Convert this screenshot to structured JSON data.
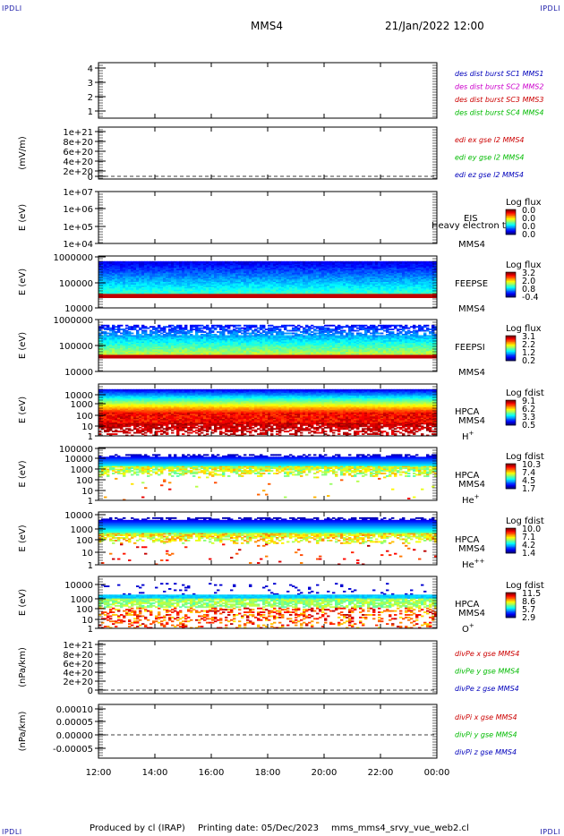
{
  "corners": {
    "tl": "IPDLI",
    "tr": "IPDLI",
    "bl": "IPDLI",
    "br": "IPDLI"
  },
  "header": {
    "spacecraft": "MMS4",
    "datetime": "21/Jan/2022 12:00"
  },
  "footer": {
    "produced": "Produced by cl (IRAP)",
    "printing": "Printing date: 05/Dec/2023",
    "script": "mms_mms4_srvy_vue_web2.cl"
  },
  "colors": {
    "red": "#cc0000",
    "green": "#00bb00",
    "blue": "#0000bb",
    "magenta": "#cc00cc"
  },
  "chart_data": [
    {
      "type": "line",
      "name": "burst",
      "yticks": [
        "4",
        "3",
        "2",
        "1"
      ],
      "legend": [
        {
          "label": "des dist burst SC1 MMS1",
          "color": "#0000bb"
        },
        {
          "label": "des dist burst SC2 MMS2",
          "color": "#cc00cc"
        },
        {
          "label": "des dist burst SC3 MMS3",
          "color": "#cc0000"
        },
        {
          "label": "des dist burst SC4 MMS4",
          "color": "#00bb00"
        }
      ]
    },
    {
      "type": "line",
      "name": "edi",
      "ylabel": "(mV/m)",
      "yticks": [
        "1e+21",
        "8e+20",
        "6e+20",
        "4e+20",
        "2e+20",
        "0"
      ],
      "legend": [
        {
          "label": "edi ex gse l2 MMS4",
          "color": "#cc0000"
        },
        {
          "label": "edi ey gse l2 MMS4",
          "color": "#00bb00"
        },
        {
          "label": "edi ez gse l2 MMS4",
          "color": "#0000bb"
        }
      ]
    },
    {
      "type": "heatmap",
      "name": "eis",
      "ylabel": "E (eV)",
      "yticks": [
        "1e+07",
        "1e+06",
        "1e+05",
        "1e+04"
      ],
      "labels": [
        "EIS",
        "MMS4"
      ],
      "overlay": "Heavy electron to",
      "cbar_title": "Log flux",
      "cbar_ticks": [
        "0.0",
        "0.0",
        "0.0",
        "0.0"
      ]
    },
    {
      "type": "heatmap",
      "name": "feepse",
      "ylabel": "E (eV)",
      "yticks": [
        "1000000",
        "100000",
        "10000"
      ],
      "labels": [
        "FEEPSE",
        "MMS4"
      ],
      "cbar_title": "Log flux",
      "cbar_ticks": [
        "3.2",
        "2.0",
        "0.8",
        "-0.4"
      ]
    },
    {
      "type": "heatmap",
      "name": "feepsi",
      "ylabel": "E (eV)",
      "yticks": [
        "1000000",
        "100000",
        "10000"
      ],
      "labels": [
        "FEEPSI",
        "MMS4"
      ],
      "cbar_title": "Log flux",
      "cbar_ticks": [
        "3.1",
        "2.2",
        "1.2",
        "0.2"
      ]
    },
    {
      "type": "heatmap",
      "name": "hpca-h",
      "ylabel": "E (eV)",
      "yticks": [
        "10000",
        "1000",
        "100",
        "10",
        "1"
      ],
      "labels": [
        "HPCA",
        "MMS4"
      ],
      "ion": "H",
      "ionsup": "+",
      "cbar_title": "Log fdist",
      "cbar_ticks": [
        "9.1",
        "6.2",
        "3.3",
        "0.5"
      ]
    },
    {
      "type": "heatmap",
      "name": "hpca-he",
      "ylabel": "E (eV)",
      "yticks": [
        "100000",
        "10000",
        "1000",
        "100",
        "10",
        "1"
      ],
      "labels": [
        "HPCA",
        "MMS4"
      ],
      "ion": "He",
      "ionsup": "+",
      "cbar_title": "Log fdist",
      "cbar_ticks": [
        "10.3",
        "7.4",
        "4.5",
        "1.7"
      ]
    },
    {
      "type": "heatmap",
      "name": "hpca-hepp",
      "ylabel": "E (eV)",
      "yticks": [
        "10000",
        "1000",
        "100",
        "10",
        "1"
      ],
      "labels": [
        "HPCA",
        "MMS4"
      ],
      "ion": "He",
      "ionsup": "++",
      "cbar_title": "Log fdist",
      "cbar_ticks": [
        "10.0",
        "7.1",
        "4.2",
        "1.4"
      ]
    },
    {
      "type": "heatmap",
      "name": "hpca-o",
      "ylabel": "E (eV)",
      "yticks": [
        "10000",
        "1000",
        "100",
        "10",
        "1"
      ],
      "labels": [
        "HPCA",
        "MMS4"
      ],
      "ion": "O",
      "ionsup": "+",
      "cbar_title": "Log fdist",
      "cbar_ticks": [
        "11.5",
        "8.6",
        "5.7",
        "2.9"
      ]
    },
    {
      "type": "line",
      "name": "divpe",
      "ylabel": "(nPa/km)",
      "yticks": [
        "1e+21",
        "8e+20",
        "6e+20",
        "4e+20",
        "2e+20",
        "0"
      ],
      "legend": [
        {
          "label": "divPe x gse MMS4",
          "color": "#cc0000"
        },
        {
          "label": "divPe y gse MMS4",
          "color": "#00bb00"
        },
        {
          "label": "divPe z gse MMS4",
          "color": "#0000bb"
        }
      ]
    },
    {
      "type": "line",
      "name": "divpi",
      "ylabel": "(nPa/km)",
      "yticks": [
        "0.00010",
        "0.00005",
        "0.00000",
        "-0.00005"
      ],
      "legend": [
        {
          "label": "divPi x gse MMS4",
          "color": "#cc0000"
        },
        {
          "label": "divPi y gse MMS4",
          "color": "#00bb00"
        },
        {
          "label": "divPi z gse MMS4",
          "color": "#0000bb"
        }
      ]
    }
  ],
  "xaxis": {
    "ticks": [
      "12:00",
      "14:00",
      "16:00",
      "18:00",
      "20:00",
      "22:00",
      "00:00"
    ]
  }
}
